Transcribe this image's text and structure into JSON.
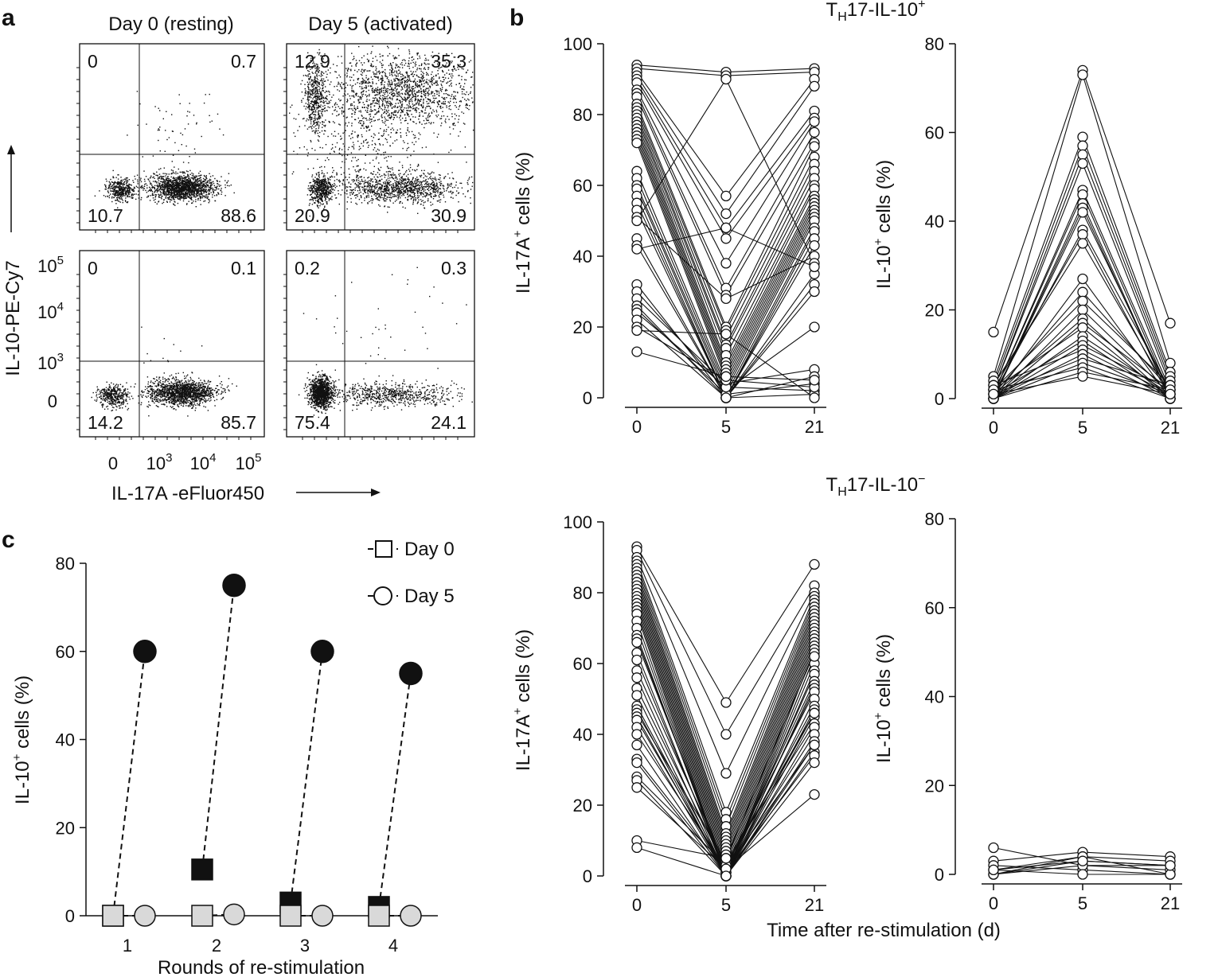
{
  "panels": {
    "a": "a",
    "b": "b",
    "c": "c"
  },
  "panel_a": {
    "col_titles": [
      "Day 0 (resting)",
      "Day 5 (activated)"
    ],
    "ylabel": "IL-10-PE-Cy7",
    "xlabel": "IL-17A -eFluor450",
    "y_ticks": [
      "0",
      "10",
      "10",
      "10"
    ],
    "y_tick_exp": [
      "",
      "3",
      "4",
      "5"
    ],
    "x_ticks": [
      "0",
      "10",
      "10",
      "10"
    ],
    "x_tick_exp": [
      "",
      "3",
      "4",
      "5"
    ],
    "plots": [
      {
        "name": "top-day0",
        "q": [
          "0",
          "0.7",
          "10.7",
          "88.6"
        ]
      },
      {
        "name": "top-day5",
        "q": [
          "12.9",
          "35.3",
          "20.9",
          "30.9"
        ]
      },
      {
        "name": "bottom-day0",
        "q": [
          "0",
          "0.1",
          "14.2",
          "85.7"
        ]
      },
      {
        "name": "bottom-day5",
        "q": [
          "0.2",
          "0.3",
          "75.4",
          "24.1"
        ]
      }
    ]
  },
  "panel_b": {
    "top_title_main": "T",
    "top_title_sub": "H",
    "top_title_rest": "17-IL-10",
    "top_title_sup": "+",
    "bottom_title_main": "T",
    "bottom_title_sub": "H",
    "bottom_title_rest": "17-IL-10",
    "bottom_title_sup": "−",
    "ylabel_17a_pre": "IL-17A",
    "ylabel_10_pre": "IL-10",
    "ylabel_sup": "+",
    "ylabel_post": " cells (%)",
    "xlabel": "Time after re-stimulation (d)",
    "x_ticks": [
      "0",
      "5",
      "21"
    ]
  },
  "panel_c": {
    "legend": [
      "Day 0",
      "Day 5"
    ],
    "ylabel_pre": "IL-10",
    "ylabel_sup": "+",
    "ylabel_post": " cells (%)",
    "xlabel": "Rounds of re-stimulation"
  },
  "colors": {
    "black": "#111111",
    "gray_fill": "#d9d9d9",
    "white": "#ffffff"
  },
  "chart_data": [
    {
      "id": "b-top-left",
      "type": "line",
      "title": "TH17-IL-10+",
      "ylabel": "IL-17A+ cells (%)",
      "xlabel": "Time after re-stimulation (d)",
      "ylim": [
        0,
        100
      ],
      "y_ticks": [
        0,
        20,
        40,
        60,
        80,
        100
      ],
      "categories": [
        "0",
        "5",
        "21"
      ],
      "series": [
        {
          "values": [
            94,
            92,
            93
          ]
        },
        {
          "values": [
            93,
            91,
            92
          ]
        },
        {
          "values": [
            92,
            57,
            90
          ]
        },
        {
          "values": [
            91,
            52,
            88
          ]
        },
        {
          "values": [
            90,
            48,
            81
          ]
        },
        {
          "values": [
            89,
            45,
            79
          ]
        },
        {
          "values": [
            87,
            38,
            78
          ]
        },
        {
          "values": [
            86,
            31,
            75
          ]
        },
        {
          "values": [
            85,
            29,
            72
          ]
        },
        {
          "values": [
            83,
            20,
            71
          ]
        },
        {
          "values": [
            82,
            19,
            68
          ]
        },
        {
          "values": [
            81,
            17,
            66
          ]
        },
        {
          "values": [
            80,
            15,
            64
          ]
        },
        {
          "values": [
            79,
            14,
            62
          ]
        },
        {
          "values": [
            78,
            12,
            60
          ]
        },
        {
          "values": [
            77,
            10,
            59
          ]
        },
        {
          "values": [
            76,
            9,
            57
          ]
        },
        {
          "values": [
            75,
            8,
            56
          ]
        },
        {
          "values": [
            74,
            7,
            55
          ]
        },
        {
          "values": [
            73,
            6,
            54
          ]
        },
        {
          "values": [
            72,
            5,
            53
          ]
        },
        {
          "values": [
            64,
            4,
            52
          ]
        },
        {
          "values": [
            62,
            3,
            51
          ]
        },
        {
          "values": [
            60,
            2,
            50
          ]
        },
        {
          "values": [
            59,
            1,
            48
          ]
        },
        {
          "values": [
            57,
            0,
            47
          ]
        },
        {
          "values": [
            55,
            0,
            45
          ]
        },
        {
          "values": [
            53,
            0,
            43
          ]
        },
        {
          "values": [
            51,
            28,
            40
          ]
        },
        {
          "values": [
            50,
            90,
            38
          ]
        },
        {
          "values": [
            45,
            0,
            35
          ]
        },
        {
          "values": [
            43,
            0,
            32
          ]
        },
        {
          "values": [
            42,
            48,
            37
          ]
        },
        {
          "values": [
            32,
            0,
            30
          ]
        },
        {
          "values": [
            30,
            2,
            20
          ]
        },
        {
          "values": [
            28,
            4,
            8
          ]
        },
        {
          "values": [
            26,
            0,
            6
          ]
        },
        {
          "values": [
            25,
            1,
            4
          ]
        },
        {
          "values": [
            24,
            3,
            2
          ]
        },
        {
          "values": [
            22,
            0,
            1
          ]
        },
        {
          "values": [
            20,
            5,
            3
          ]
        },
        {
          "values": [
            19,
            18,
            0
          ]
        },
        {
          "values": [
            13,
            6,
            5
          ]
        }
      ]
    },
    {
      "id": "b-top-right",
      "type": "line",
      "ylabel": "IL-10+ cells (%)",
      "ylim": [
        0,
        80
      ],
      "y_ticks": [
        0,
        20,
        40,
        60,
        80
      ],
      "categories": [
        "0",
        "5",
        "21"
      ],
      "series": [
        {
          "values": [
            15,
            74,
            17
          ]
        },
        {
          "values": [
            5,
            73,
            8
          ]
        },
        {
          "values": [
            4,
            59,
            6
          ]
        },
        {
          "values": [
            3,
            57,
            5
          ]
        },
        {
          "values": [
            2,
            55,
            4
          ]
        },
        {
          "values": [
            2,
            53,
            3
          ]
        },
        {
          "values": [
            1,
            47,
            2
          ]
        },
        {
          "values": [
            1,
            46,
            1
          ]
        },
        {
          "values": [
            0,
            44,
            0
          ]
        },
        {
          "values": [
            0,
            43,
            0
          ]
        },
        {
          "values": [
            0,
            42,
            1
          ]
        },
        {
          "values": [
            1,
            38,
            2
          ]
        },
        {
          "values": [
            2,
            37,
            0
          ]
        },
        {
          "values": [
            3,
            35,
            1
          ]
        },
        {
          "values": [
            0,
            27,
            0
          ]
        },
        {
          "values": [
            1,
            24,
            2
          ]
        },
        {
          "values": [
            2,
            22,
            3
          ]
        },
        {
          "values": [
            0,
            20,
            1
          ]
        },
        {
          "values": [
            1,
            18,
            0
          ]
        },
        {
          "values": [
            0,
            17,
            2
          ]
        },
        {
          "values": [
            2,
            16,
            0
          ]
        },
        {
          "values": [
            0,
            14,
            1
          ]
        },
        {
          "values": [
            1,
            13,
            0
          ]
        },
        {
          "values": [
            0,
            12,
            2
          ]
        },
        {
          "values": [
            3,
            11,
            1
          ]
        },
        {
          "values": [
            0,
            10,
            0
          ]
        },
        {
          "values": [
            1,
            9,
            3
          ]
        },
        {
          "values": [
            0,
            8,
            1
          ]
        },
        {
          "values": [
            2,
            7,
            0
          ]
        },
        {
          "values": [
            0,
            6,
            2
          ]
        },
        {
          "values": [
            1,
            5,
            1
          ]
        }
      ]
    },
    {
      "id": "b-bottom-left",
      "type": "line",
      "title": "TH17-IL-10−",
      "ylabel": "IL-17A+ cells (%)",
      "ylim": [
        0,
        100
      ],
      "y_ticks": [
        0,
        20,
        40,
        60,
        80,
        100
      ],
      "categories": [
        "0",
        "5",
        "21"
      ],
      "series": [
        {
          "values": [
            93,
            49,
            88
          ]
        },
        {
          "values": [
            92,
            40,
            82
          ]
        },
        {
          "values": [
            90,
            29,
            80
          ]
        },
        {
          "values": [
            89,
            18,
            79
          ]
        },
        {
          "values": [
            88,
            16,
            78
          ]
        },
        {
          "values": [
            87,
            14,
            77
          ]
        },
        {
          "values": [
            86,
            12,
            76
          ]
        },
        {
          "values": [
            85,
            11,
            75
          ]
        },
        {
          "values": [
            84,
            10,
            74
          ]
        },
        {
          "values": [
            83,
            9,
            73
          ]
        },
        {
          "values": [
            82,
            8,
            72
          ]
        },
        {
          "values": [
            81,
            7,
            71
          ]
        },
        {
          "values": [
            80,
            6,
            70
          ]
        },
        {
          "values": [
            79,
            5,
            69
          ]
        },
        {
          "values": [
            78,
            4,
            68
          ]
        },
        {
          "values": [
            77,
            3,
            67
          ]
        },
        {
          "values": [
            76,
            2,
            66
          ]
        },
        {
          "values": [
            75,
            1,
            65
          ]
        },
        {
          "values": [
            74,
            0,
            64
          ]
        },
        {
          "values": [
            72,
            0,
            62
          ]
        },
        {
          "values": [
            70,
            0,
            60
          ]
        },
        {
          "values": [
            68,
            0,
            58
          ]
        },
        {
          "values": [
            67,
            1,
            57
          ]
        },
        {
          "values": [
            66,
            2,
            55
          ]
        },
        {
          "values": [
            63,
            0,
            54
          ]
        },
        {
          "values": [
            61,
            1,
            53
          ]
        },
        {
          "values": [
            58,
            3,
            52
          ]
        },
        {
          "values": [
            56,
            0,
            50
          ]
        },
        {
          "values": [
            53,
            2,
            48
          ]
        },
        {
          "values": [
            51,
            0,
            47
          ]
        },
        {
          "values": [
            48,
            1,
            46
          ]
        },
        {
          "values": [
            47,
            0,
            45
          ]
        },
        {
          "values": [
            46,
            4,
            43
          ]
        },
        {
          "values": [
            45,
            0,
            42
          ]
        },
        {
          "values": [
            44,
            1,
            40
          ]
        },
        {
          "values": [
            42,
            0,
            38
          ]
        },
        {
          "values": [
            40,
            2,
            37
          ]
        },
        {
          "values": [
            37,
            0,
            35
          ]
        },
        {
          "values": [
            33,
            1,
            34
          ]
        },
        {
          "values": [
            32,
            0,
            32
          ]
        },
        {
          "values": [
            28,
            3,
            46
          ]
        },
        {
          "values": [
            27,
            0,
            37
          ]
        },
        {
          "values": [
            25,
            2,
            23
          ]
        },
        {
          "values": [
            10,
            5,
            63
          ]
        },
        {
          "values": [
            8,
            0,
            62
          ]
        }
      ]
    },
    {
      "id": "b-bottom-right",
      "type": "line",
      "ylabel": "IL-10+ cells (%)",
      "ylim": [
        0,
        80
      ],
      "y_ticks": [
        0,
        20,
        40,
        60,
        80
      ],
      "categories": [
        "0",
        "5",
        "21"
      ],
      "series": [
        {
          "values": [
            6,
            2,
            2
          ]
        },
        {
          "values": [
            3,
            5,
            4
          ]
        },
        {
          "values": [
            1,
            4,
            0
          ]
        },
        {
          "values": [
            0,
            3,
            2
          ]
        },
        {
          "values": [
            2,
            1,
            0
          ]
        },
        {
          "values": [
            0,
            2,
            1
          ]
        },
        {
          "values": [
            1,
            0,
            0
          ]
        },
        {
          "values": [
            0,
            4,
            3
          ]
        },
        {
          "values": [
            1,
            3,
            2
          ]
        }
      ]
    },
    {
      "id": "c",
      "type": "scatter",
      "ylabel": "IL-10+ cells (%)",
      "xlabel": "Rounds of re-stimulation",
      "ylim": [
        0,
        80
      ],
      "y_ticks": [
        0,
        20,
        40,
        60,
        80
      ],
      "categories": [
        "1",
        "2",
        "3",
        "4"
      ],
      "series": [
        {
          "name": "TH17-IL-10+ Day 0",
          "marker": "square-black",
          "values": [
            0,
            10.5,
            3,
            2
          ]
        },
        {
          "name": "TH17-IL-10+ Day 5",
          "marker": "circle-black",
          "values": [
            60,
            75,
            60,
            55
          ]
        },
        {
          "name": "TH17-IL-10− Day 0",
          "marker": "square-gray",
          "values": [
            0,
            0,
            0,
            0
          ]
        },
        {
          "name": "TH17-IL-10− Day 5",
          "marker": "circle-gray",
          "values": [
            0,
            0.3,
            0,
            0
          ]
        }
      ]
    }
  ]
}
